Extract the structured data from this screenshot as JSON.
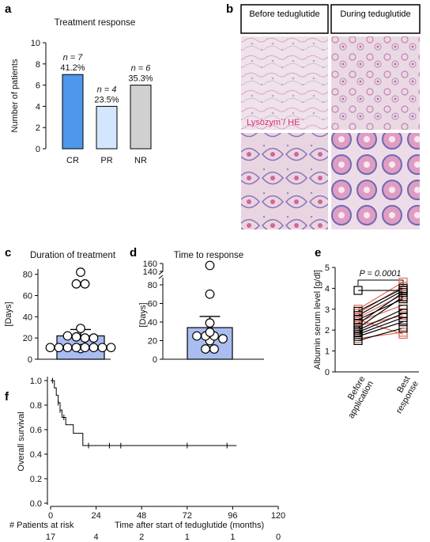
{
  "panels": {
    "a": "a",
    "b": "b",
    "c": "c",
    "d": "d",
    "e": "e",
    "f": "f"
  },
  "colors": {
    "cr": "#4f97ec",
    "pr": "#d3e6fb",
    "nr": "#d0d0d0",
    "bar_cd": "#a9bdf1",
    "red_line": "#e26a5a",
    "stain": "#d6307a"
  },
  "histology": {
    "before_label": "Before teduglutide",
    "during_label": "During teduglutide",
    "caption": "Lysozym / HE"
  },
  "chart_data": [
    {
      "id": "a",
      "type": "bar",
      "title": "Treatment response",
      "ylabel": "Number of patients",
      "xlabel": "",
      "categories": [
        "CR",
        "PR",
        "NR"
      ],
      "values": [
        7,
        4,
        6
      ],
      "annotations": [
        {
          "n": "n = 7",
          "pct": "41.2%"
        },
        {
          "n": "n = 4",
          "pct": "23.5%"
        },
        {
          "n": "n = 6",
          "pct": "35.3%"
        }
      ],
      "ylim": [
        0,
        10
      ],
      "yticks": [
        "0",
        "2",
        "4",
        "6",
        "8",
        "10"
      ]
    },
    {
      "id": "c",
      "type": "bar",
      "title": "Duration of treatment",
      "ylabel": "[Days]",
      "mean": 22,
      "sem": 6,
      "points": [
        82,
        71,
        71,
        29,
        22,
        21,
        20,
        20,
        11,
        11,
        11,
        11,
        11,
        11,
        10,
        11,
        11
      ],
      "ylim": [
        0,
        85
      ],
      "yticks": [
        "0",
        "20",
        "40",
        "60",
        "80"
      ]
    },
    {
      "id": "d",
      "type": "bar",
      "title": "Time to response",
      "ylabel": "[Days]",
      "mean": 34,
      "sem": 12,
      "points": [
        155,
        70,
        39,
        29,
        25,
        25,
        25,
        22,
        20,
        11,
        11
      ],
      "ylim": [
        0,
        160
      ],
      "axis_break": true,
      "yticks": [
        "0",
        "20",
        "40",
        "60",
        "80",
        "140",
        "160"
      ]
    },
    {
      "id": "e",
      "type": "line",
      "title": "",
      "ylabel": "Albumin serum level [g/dl]",
      "categories": [
        "Before application",
        "Best response"
      ],
      "pvalue": "P = 0.0001",
      "ylim": [
        0,
        5
      ],
      "yticks": [
        "0",
        "1",
        "2",
        "3",
        "4",
        "5"
      ],
      "pairs_black": [
        [
          3.9,
          3.9
        ],
        [
          2.9,
          4.0
        ],
        [
          2.7,
          3.9
        ],
        [
          2.5,
          3.5
        ],
        [
          2.3,
          3.8
        ],
        [
          2.1,
          3.6
        ],
        [
          2.0,
          3.0
        ],
        [
          1.9,
          2.8
        ],
        [
          1.8,
          2.6
        ],
        [
          1.7,
          2.4
        ],
        [
          1.5,
          2.1
        ]
      ],
      "pairs_red": [
        [
          3.0,
          4.3
        ],
        [
          2.8,
          4.1
        ],
        [
          2.6,
          3.7
        ],
        [
          2.4,
          3.2
        ],
        [
          2.2,
          2.7
        ],
        [
          1.6,
          1.9
        ],
        [
          2.5,
          1.8
        ]
      ]
    },
    {
      "id": "f",
      "type": "line",
      "title": "",
      "ylabel": "Overall survival",
      "xlabel": "Time after start of teduglutide (months)",
      "xlim": [
        0,
        120
      ],
      "ylim": [
        0,
        1
      ],
      "xticks": [
        "0",
        "24",
        "48",
        "72",
        "96",
        "120"
      ],
      "yticks": [
        "0.0",
        "0.2",
        "0.4",
        "0.6",
        "0.8",
        "1.0"
      ],
      "steps": [
        [
          0,
          1.0
        ],
        [
          2,
          1.0
        ],
        [
          2,
          0.94
        ],
        [
          3,
          0.94
        ],
        [
          3,
          0.88
        ],
        [
          4,
          0.88
        ],
        [
          4,
          0.82
        ],
        [
          5,
          0.82
        ],
        [
          5,
          0.76
        ],
        [
          6,
          0.76
        ],
        [
          6,
          0.7
        ],
        [
          8,
          0.7
        ],
        [
          8,
          0.64
        ],
        [
          12,
          0.64
        ],
        [
          12,
          0.57
        ],
        [
          17,
          0.57
        ],
        [
          17,
          0.47
        ],
        [
          98,
          0.47
        ]
      ],
      "censors": [
        [
          1,
          1.0
        ],
        [
          4,
          0.82
        ],
        [
          5,
          0.76
        ],
        [
          7,
          0.7
        ],
        [
          20,
          0.47
        ],
        [
          31,
          0.47
        ],
        [
          37,
          0.47
        ],
        [
          72,
          0.47
        ],
        [
          93,
          0.47
        ]
      ],
      "risk_label": "# Patients at risk",
      "risk_counts": [
        "17",
        "4",
        "2",
        "1",
        "1",
        "0"
      ]
    }
  ]
}
